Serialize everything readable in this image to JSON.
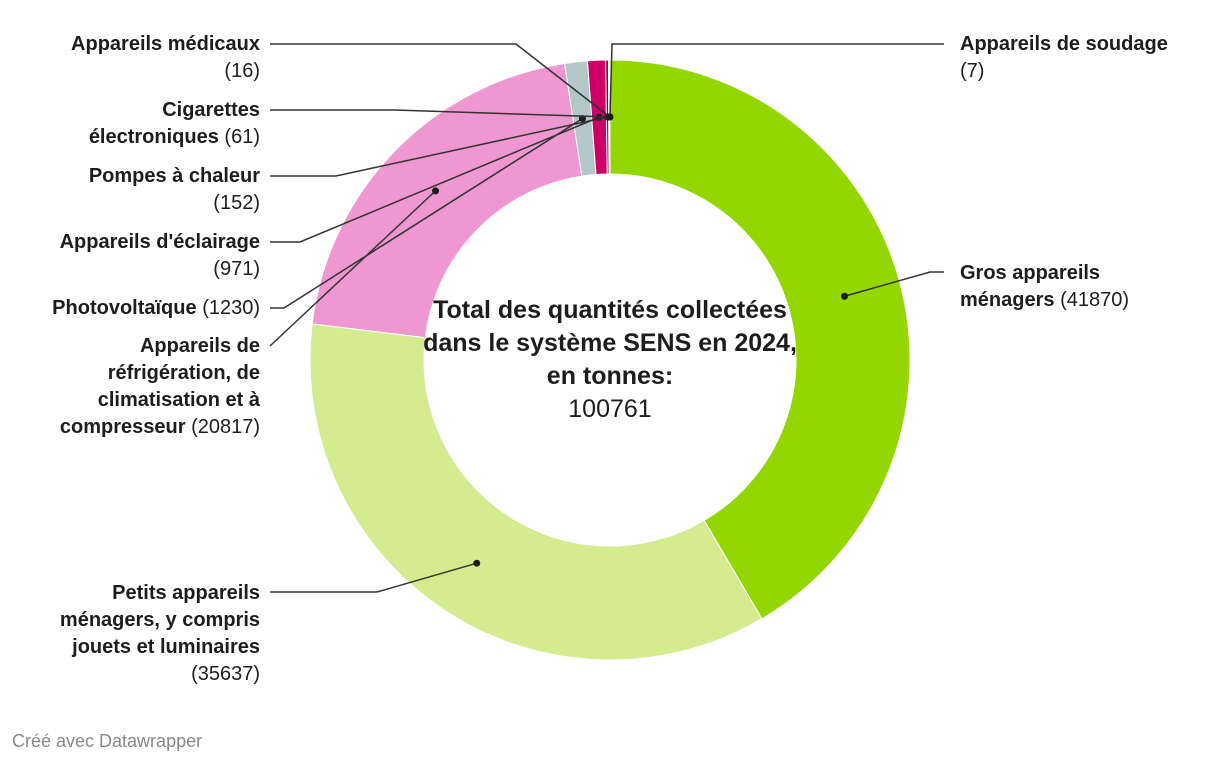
{
  "chart_data": {
    "type": "pie",
    "center_title": "Total des quantités collectées dans le système SENS en 2024, en tonnes:",
    "center_value": "100761",
    "slices": [
      {
        "label": "Gros appareils ménagers",
        "value": 41870,
        "value_text": "(41870)",
        "color": "#94d600"
      },
      {
        "label": "Petits appareils ménagers, y compris jouets et luminaires",
        "value": 35637,
        "value_text": "(35637)",
        "color": "#d5eb90"
      },
      {
        "label": "Appareils de réfrigération, de climatisation et à compresseur",
        "value": 20817,
        "value_text": "(20817)",
        "color": "#ef97d0"
      },
      {
        "label": "Photovoltaïque",
        "value": 1230,
        "value_text": "(1230)",
        "color": "#b3c6c8"
      },
      {
        "label": "Appareils d'éclairage",
        "value": 971,
        "value_text": "(971)",
        "color": "#cc0066"
      },
      {
        "label": "Pompes à chaleur",
        "value": 152,
        "value_text": "(152)",
        "color": "#8a0040"
      },
      {
        "label": "Cigarettes électroniques",
        "value": 61,
        "value_text": "(61)",
        "color": "#e6a100"
      },
      {
        "label": "Appareils médicaux",
        "value": 16,
        "value_text": "(16)",
        "color": "#6f6f6f"
      },
      {
        "label": "Appareils de soudage",
        "value": 7,
        "value_text": "(7)",
        "color": "#3a6a00"
      }
    ],
    "order": "clockwise from top"
  },
  "credit": "Créé avec Datawrapper"
}
